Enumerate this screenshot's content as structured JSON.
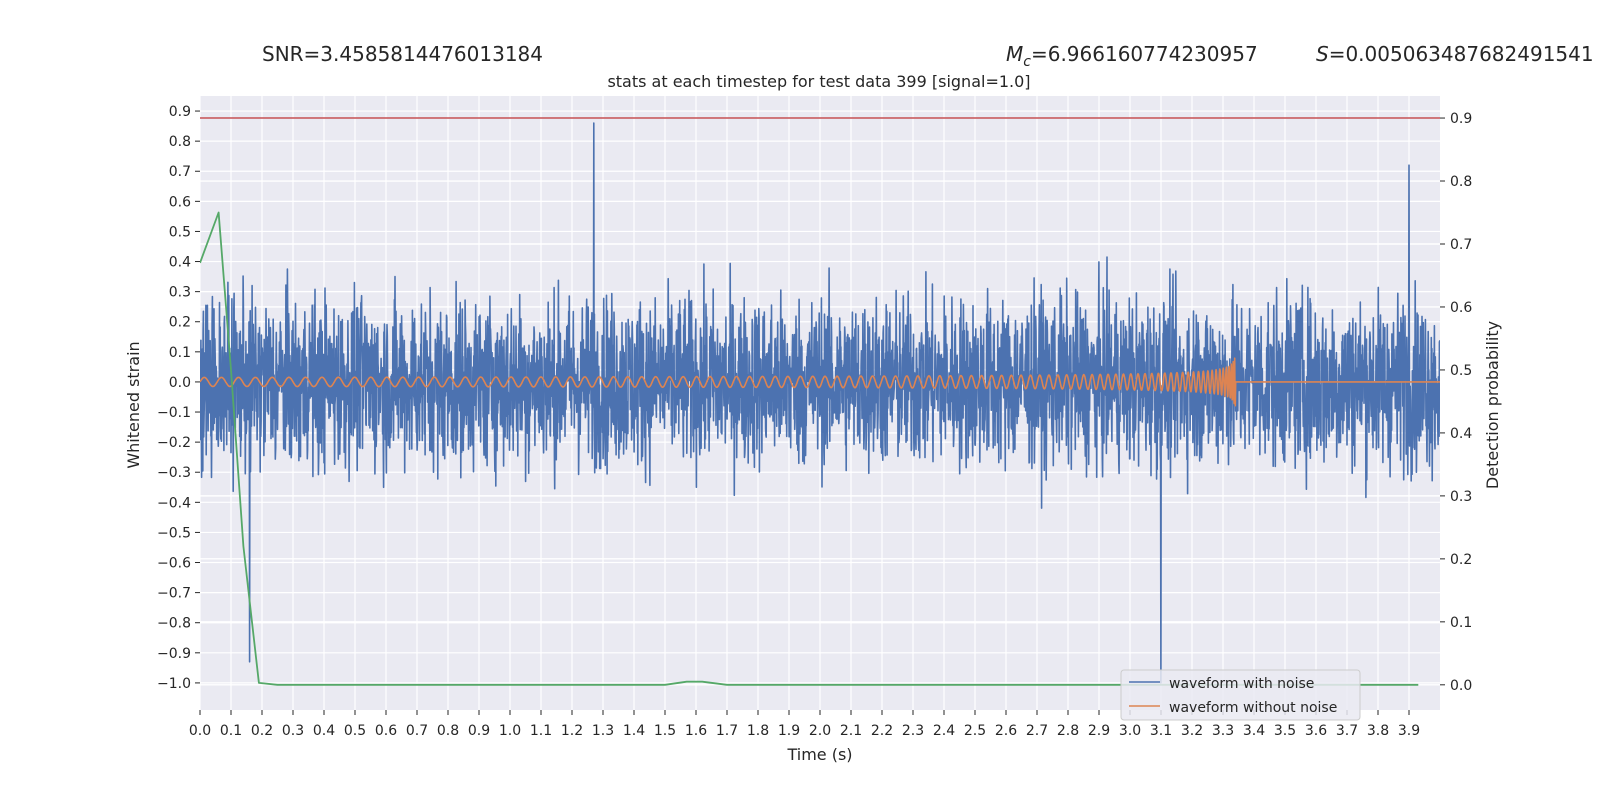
{
  "chart_data": {
    "type": "line",
    "title": "stats at each timestep for test data 399 [signal=1.0]",
    "header_stats": {
      "snr": "SNR=3.4585814476013184",
      "mc_symbol": "M",
      "mc_sub": "c",
      "mc_value": "=6.966160774230957",
      "s_symbol": "S",
      "s_value": "=0.005063487682491541"
    },
    "xlabel": "Time (s)",
    "ylabel_left": "Whitened strain",
    "ylabel_right": "Detection probability",
    "xlim": [
      0.0,
      4.0
    ],
    "ylim_left": [
      -1.09,
      0.95
    ],
    "ylim_right": [
      -0.04,
      0.935
    ],
    "x_ticks": [
      "0.0",
      "0.1",
      "0.2",
      "0.3",
      "0.4",
      "0.5",
      "0.6",
      "0.7",
      "0.8",
      "0.9",
      "1.0",
      "1.1",
      "1.2",
      "1.3",
      "1.4",
      "1.5",
      "1.6",
      "1.7",
      "1.8",
      "1.9",
      "2.0",
      "2.1",
      "2.2",
      "2.3",
      "2.4",
      "2.5",
      "2.6",
      "2.7",
      "2.8",
      "2.9",
      "3.0",
      "3.1",
      "3.2",
      "3.3",
      "3.4",
      "3.5",
      "3.6",
      "3.7",
      "3.8",
      "3.9"
    ],
    "y_ticks_left": [
      "0.9",
      "0.8",
      "0.7",
      "0.6",
      "0.5",
      "0.4",
      "0.3",
      "0.2",
      "0.1",
      "0.0",
      "−0.1",
      "−0.2",
      "−0.3",
      "−0.4",
      "−0.5",
      "−0.6",
      "−0.7",
      "−0.8",
      "−0.9",
      "−1.0"
    ],
    "y_ticks_right": [
      "0.9",
      "0.8",
      "0.7",
      "0.6",
      "0.5",
      "0.4",
      "0.3",
      "0.2",
      "0.1",
      "0.0"
    ],
    "grid": true,
    "background": "#eaeaf2",
    "legend": {
      "placement": "lower-right",
      "entries": [
        {
          "label": "waveform with noise",
          "color": "#4c72b0"
        },
        {
          "label": "waveform without noise",
          "color": "#dd8452"
        }
      ]
    },
    "threshold": {
      "axis": "right",
      "value": 0.9,
      "color": "#c44e52"
    },
    "series": [
      {
        "key": "noise",
        "axis": "left",
        "color": "#4c72b0",
        "kind": "noisy-strain",
        "amplitude_typical": 0.5,
        "amplitude_max": 0.86,
        "amplitude_min": -1.0
      },
      {
        "key": "clean",
        "axis": "left",
        "color": "#dd8452",
        "kind": "chirp",
        "merger_time": 3.34,
        "amplitude_start": 0.015,
        "amplitude_peak": 0.12
      },
      {
        "key": "probability",
        "axis": "right",
        "color": "#55a868",
        "x": [
          0.0,
          0.06,
          0.1,
          0.14,
          0.19,
          0.25,
          1.5,
          1.57,
          1.62,
          1.7,
          3.93
        ],
        "y": [
          0.67,
          0.75,
          0.5,
          0.22,
          0.003,
          0.0,
          0.0,
          0.005,
          0.005,
          0.0,
          0.0
        ]
      }
    ]
  }
}
